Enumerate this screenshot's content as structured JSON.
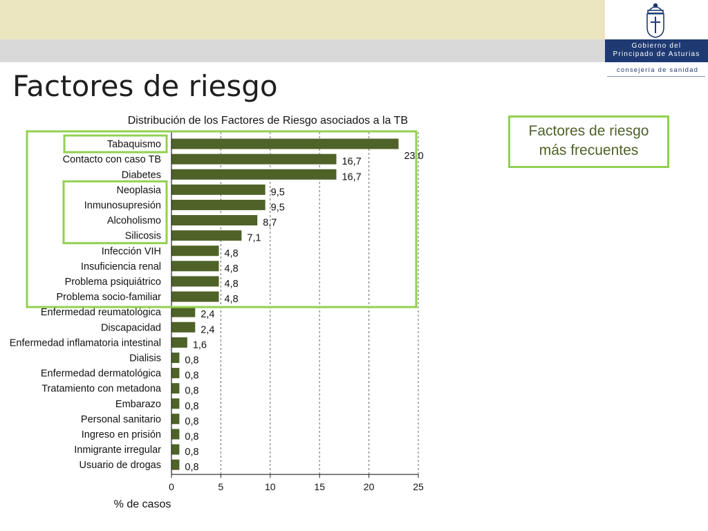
{
  "header": {
    "logo_line1": "Gobierno del",
    "logo_line2": "Principado de Asturias",
    "logo_sub": "consejería de sanidad",
    "band_color": "#ebe5c0",
    "grey_color": "#d9d9d9",
    "brand_color": "#1f3a73"
  },
  "page": {
    "title": "Factores de riesgo"
  },
  "callout": {
    "line1": "Factores de riesgo",
    "line2": "más frecuentes",
    "border_color": "#92d050",
    "text_color": "#4f6228"
  },
  "chart_data": {
    "type": "bar",
    "orientation": "horizontal",
    "title": "Distribución de los Factores de Riesgo asociados a  la TB",
    "xlabel": "% de casos",
    "ylabel": "",
    "xlim": [
      0,
      25
    ],
    "xticks": [
      0,
      5,
      10,
      15,
      20,
      25
    ],
    "grid": "vertical dashed",
    "bar_color": "#4f6228",
    "highlight_color": "#92d050",
    "categories": [
      "Tabaquismo",
      "Contacto con caso TB",
      "Diabetes",
      "Neoplasia",
      "Inmunosupresión",
      "Alcoholismo",
      "Silicosis",
      "Infección VIH",
      "Insuficiencia renal",
      "Problema psiquiátrico",
      "Problema socio-familiar",
      "Enfermedad reumatológica",
      "Discapacidad",
      "Enfermedad inflamatoria intestinal",
      "Dialisis",
      "Enfermedad dermatológica",
      "Tratamiento con metadona",
      "Embarazo",
      "Personal sanitario",
      "Ingreso en prisión",
      "Inmigrante irregular",
      "Usuario de drogas"
    ],
    "values": [
      23.0,
      16.7,
      16.7,
      9.5,
      9.5,
      8.7,
      7.1,
      4.8,
      4.8,
      4.8,
      4.8,
      2.4,
      2.4,
      1.6,
      0.8,
      0.8,
      0.8,
      0.8,
      0.8,
      0.8,
      0.8,
      0.8
    ],
    "value_labels": [
      "23,0",
      "16,7",
      "16,7",
      "9,5",
      "9,5",
      "8,7",
      "7,1",
      "4,8",
      "4,8",
      "4,8",
      "4,8",
      "2,4",
      "2,4",
      "1,6",
      "0,8",
      "0,8",
      "0,8",
      "0,8",
      "0,8",
      "0,8",
      "0,8",
      "0,8"
    ],
    "highlight_groups": [
      {
        "from_index": 0,
        "to_index": 10
      },
      {
        "from_index": 0,
        "to_index": 0
      },
      {
        "from_index": 3,
        "to_index": 6
      }
    ]
  }
}
